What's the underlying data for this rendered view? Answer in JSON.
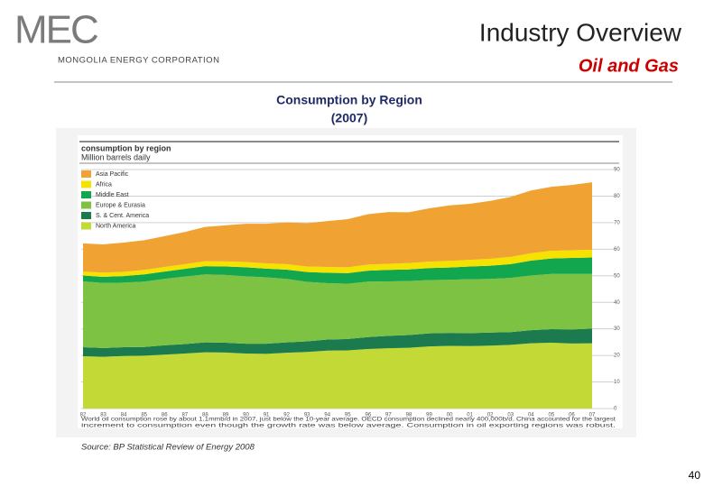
{
  "header": {
    "logo": "MEC",
    "company": "MONGOLIA ENERGY CORPORATION",
    "title": "Industry Overview",
    "subtitle": "Oil and Gas"
  },
  "slide": {
    "title": "Consumption by Region",
    "subtitle": "(2007)",
    "source": "Source: BP Statistical Review of Energy 2008",
    "page": "40"
  },
  "chart_data": {
    "type": "stacked-area",
    "title": "consumption by region",
    "subtitle": "Million barrels daily",
    "caption": [
      "World oil consumption rose by about 1.1mmb/d in 2007, just below the 10-year average. OECD consumption declined nearly 400,000b/d. China accounted for the largest",
      "increment to consumption even though the growth rate was below average. Consumption in oil exporting regions was robust."
    ],
    "categories": [
      "82",
      "83",
      "84",
      "85",
      "86",
      "87",
      "88",
      "89",
      "90",
      "91",
      "92",
      "93",
      "94",
      "95",
      "96",
      "97",
      "98",
      "99",
      "00",
      "01",
      "02",
      "03",
      "04",
      "05",
      "06",
      "07"
    ],
    "ylim": [
      0,
      90
    ],
    "yticks": [
      0,
      10,
      20,
      30,
      40,
      50,
      60,
      70,
      80,
      90
    ],
    "grid": true,
    "series": [
      {
        "name": "North America",
        "color": "#c3d936",
        "values": [
          19.7,
          19.5,
          19.8,
          19.9,
          20.3,
          20.7,
          21.2,
          21.1,
          20.7,
          20.6,
          21.0,
          21.3,
          21.8,
          21.9,
          22.4,
          22.7,
          22.9,
          23.4,
          23.6,
          23.5,
          23.7,
          24.0,
          24.6,
          24.8,
          24.5,
          24.6
        ]
      },
      {
        "name": "S. & Cent. America",
        "color": "#1b7a4e",
        "values": [
          3.4,
          3.3,
          3.3,
          3.3,
          3.5,
          3.6,
          3.7,
          3.7,
          3.7,
          3.8,
          3.9,
          4.0,
          4.2,
          4.3,
          4.5,
          4.7,
          4.8,
          4.9,
          4.9,
          4.9,
          4.9,
          4.8,
          4.9,
          5.1,
          5.3,
          5.5
        ]
      },
      {
        "name": "Europe & Eurasia",
        "color": "#7dc243",
        "values": [
          24.8,
          24.5,
          24.3,
          24.6,
          25.0,
          25.4,
          25.6,
          25.5,
          25.4,
          25.0,
          23.9,
          22.4,
          21.2,
          20.8,
          20.9,
          20.5,
          20.3,
          20.1,
          20.0,
          20.3,
          20.2,
          20.4,
          20.6,
          20.8,
          20.9,
          20.6
        ]
      },
      {
        "name": "Middle East",
        "color": "#12a64f",
        "values": [
          2.2,
          2.3,
          2.5,
          2.7,
          2.8,
          2.9,
          3.1,
          3.2,
          3.4,
          3.3,
          3.5,
          3.7,
          3.9,
          4.0,
          4.1,
          4.3,
          4.4,
          4.5,
          4.6,
          4.8,
          5.0,
          5.2,
          5.6,
          5.8,
          6.0,
          6.2
        ]
      },
      {
        "name": "Africa",
        "color": "#f6e200",
        "values": [
          1.5,
          1.6,
          1.6,
          1.7,
          1.7,
          1.8,
          1.9,
          1.9,
          2.0,
          2.0,
          2.1,
          2.1,
          2.2,
          2.2,
          2.3,
          2.3,
          2.4,
          2.4,
          2.5,
          2.5,
          2.6,
          2.7,
          2.8,
          2.9,
          2.9,
          2.9
        ]
      },
      {
        "name": "Asia Pacific",
        "color": "#f0a232",
        "values": [
          10.6,
          10.6,
          11.0,
          11.2,
          11.6,
          12.1,
          12.9,
          13.6,
          14.4,
          14.9,
          15.7,
          16.3,
          17.3,
          18.1,
          19.0,
          19.5,
          19.1,
          20.1,
          20.9,
          21.1,
          21.8,
          22.6,
          23.6,
          24.1,
          24.6,
          25.4
        ]
      }
    ]
  }
}
